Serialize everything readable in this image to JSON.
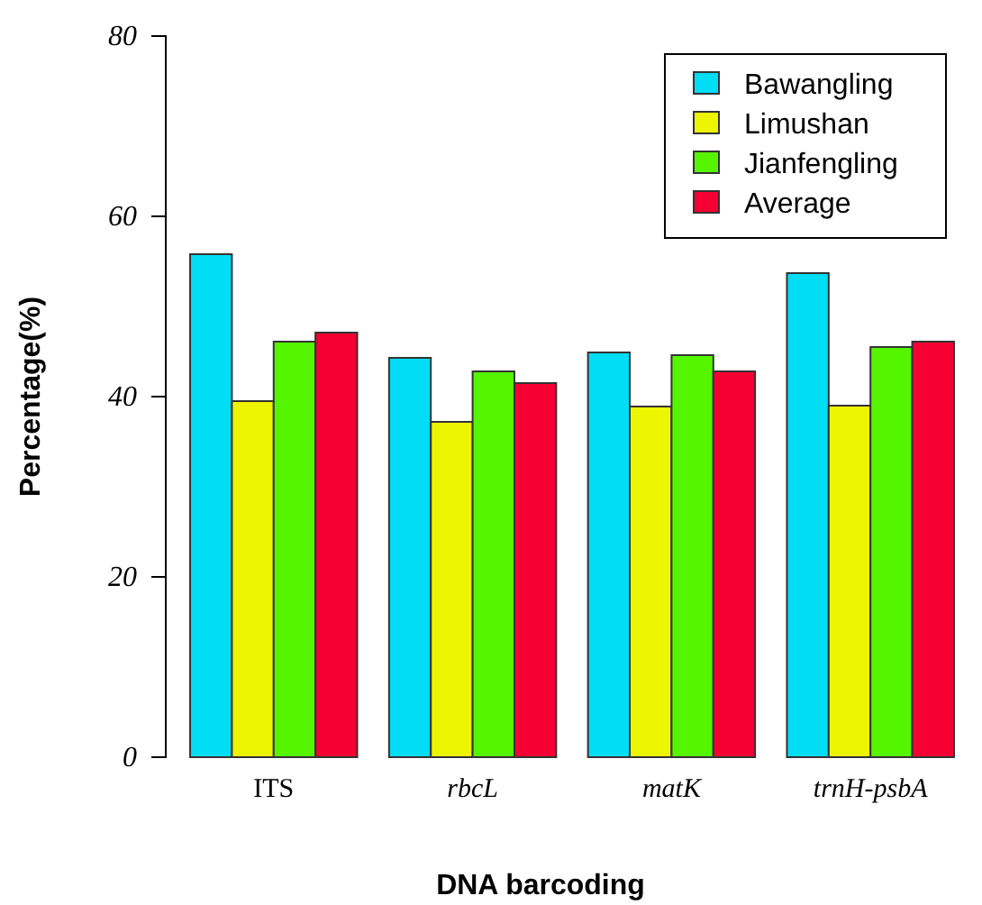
{
  "chart_data": {
    "type": "bar",
    "xlabel": "DNA barcoding",
    "ylabel": "Percentage(%)",
    "categories": [
      "ITS",
      "rbcL",
      "matK",
      "trnH-psbA"
    ],
    "series": [
      {
        "name": "Bawangling",
        "color": "#00ddf5",
        "values": [
          55.8,
          44.3,
          44.9,
          53.7
        ]
      },
      {
        "name": "Limushan",
        "color": "#eef500",
        "values": [
          39.5,
          37.2,
          38.9,
          39.0
        ]
      },
      {
        "name": "Jianfengling",
        "color": "#55f500",
        "values": [
          46.1,
          42.8,
          44.6,
          45.5
        ]
      },
      {
        "name": "Average",
        "color": "#f50032",
        "values": [
          47.1,
          41.5,
          42.8,
          46.1
        ]
      }
    ],
    "ylim": [
      0,
      80
    ],
    "yticks": [
      0,
      20,
      40,
      60,
      80
    ],
    "grid": false,
    "legend": "top right"
  }
}
